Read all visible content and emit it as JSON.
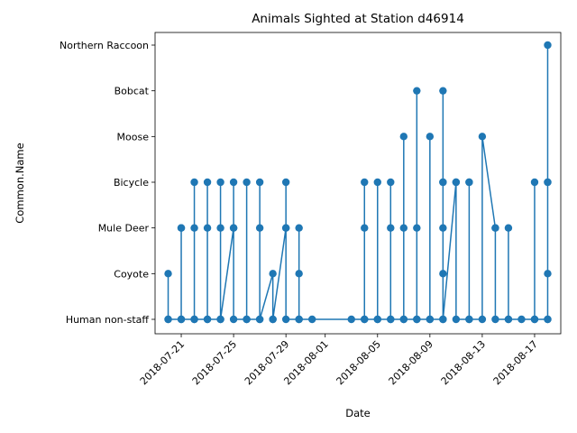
{
  "chart_data": {
    "type": "line",
    "title": "Animals Sighted at Station d46914",
    "xlabel": "Date",
    "ylabel": "Common.Name",
    "categories": [
      "Human non-staff",
      "Coyote",
      "Mule Deer",
      "Bicycle",
      "Moose",
      "Bobcat",
      "Northern Raccoon"
    ],
    "x_ticks": [
      "2018-07-21",
      "2018-07-25",
      "2018-07-29",
      "2018-08-01",
      "2018-08-05",
      "2018-08-09",
      "2018-08-13",
      "2018-08-17"
    ],
    "xlim": [
      "2018-07-19",
      "2018-08-19"
    ],
    "color": "#1f77b4",
    "grid": false,
    "series": [
      {
        "points": [
          [
            "2018-07-20",
            "Coyote"
          ],
          [
            "2018-07-20",
            "Human non-staff"
          ],
          [
            "2018-07-20",
            "Human non-staff"
          ],
          [
            "2018-07-21",
            "Human non-staff"
          ],
          [
            "2018-07-21",
            "Mule Deer"
          ],
          [
            "2018-07-21",
            "Mule Deer"
          ],
          [
            "2018-07-21",
            "Human non-staff"
          ],
          [
            "2018-07-22",
            "Human non-staff"
          ],
          [
            "2018-07-22",
            "Bicycle"
          ],
          [
            "2018-07-22",
            "Mule Deer"
          ],
          [
            "2018-07-22",
            "Human non-staff"
          ],
          [
            "2018-07-23",
            "Human non-staff"
          ],
          [
            "2018-07-23",
            "Bicycle"
          ],
          [
            "2018-07-23",
            "Mule Deer"
          ],
          [
            "2018-07-23",
            "Human non-staff"
          ],
          [
            "2018-07-24",
            "Human non-staff"
          ],
          [
            "2018-07-24",
            "Bicycle"
          ],
          [
            "2018-07-24",
            "Mule Deer"
          ],
          [
            "2018-07-24",
            "Human non-staff"
          ],
          [
            "2018-07-25",
            "Mule Deer"
          ],
          [
            "2018-07-25",
            "Bicycle"
          ],
          [
            "2018-07-25",
            "Mule Deer"
          ],
          [
            "2018-07-25",
            "Human non-staff"
          ],
          [
            "2018-07-26",
            "Human non-staff"
          ],
          [
            "2018-07-26",
            "Bicycle"
          ],
          [
            "2018-07-26",
            "Human non-staff"
          ],
          [
            "2018-07-27",
            "Human non-staff"
          ],
          [
            "2018-07-27",
            "Bicycle"
          ],
          [
            "2018-07-27",
            "Mule Deer"
          ],
          [
            "2018-07-27",
            "Human non-staff"
          ],
          [
            "2018-07-28",
            "Coyote"
          ],
          [
            "2018-07-28",
            "Human non-staff"
          ],
          [
            "2018-07-28",
            "Human non-staff"
          ],
          [
            "2018-07-29",
            "Mule Deer"
          ],
          [
            "2018-07-29",
            "Bicycle"
          ],
          [
            "2018-07-29",
            "Mule Deer"
          ],
          [
            "2018-07-29",
            "Human non-staff"
          ],
          [
            "2018-07-30",
            "Human non-staff"
          ],
          [
            "2018-07-30",
            "Mule Deer"
          ],
          [
            "2018-07-30",
            "Coyote"
          ],
          [
            "2018-07-30",
            "Human non-staff"
          ],
          [
            "2018-07-31",
            "Human non-staff"
          ],
          [
            "2018-08-03",
            "Human non-staff"
          ],
          [
            "2018-08-04",
            "Human non-staff"
          ],
          [
            "2018-08-04",
            "Bicycle"
          ],
          [
            "2018-08-04",
            "Mule Deer"
          ],
          [
            "2018-08-04",
            "Human non-staff"
          ],
          [
            "2018-08-05",
            "Human non-staff"
          ],
          [
            "2018-08-05",
            "Bicycle"
          ],
          [
            "2018-08-05",
            "Human non-staff"
          ],
          [
            "2018-08-06",
            "Human non-staff"
          ],
          [
            "2018-08-06",
            "Bicycle"
          ],
          [
            "2018-08-06",
            "Mule Deer"
          ],
          [
            "2018-08-06",
            "Human non-staff"
          ],
          [
            "2018-08-07",
            "Human non-staff"
          ],
          [
            "2018-08-07",
            "Moose"
          ],
          [
            "2018-08-07",
            "Mule Deer"
          ],
          [
            "2018-08-07",
            "Human non-staff"
          ],
          [
            "2018-08-08",
            "Human non-staff"
          ],
          [
            "2018-08-08",
            "Bobcat"
          ],
          [
            "2018-08-08",
            "Mule Deer"
          ],
          [
            "2018-08-08",
            "Human non-staff"
          ],
          [
            "2018-08-09",
            "Human non-staff"
          ],
          [
            "2018-08-09",
            "Moose"
          ],
          [
            "2018-08-09",
            "Human non-staff"
          ],
          [
            "2018-08-10",
            "Human non-staff"
          ],
          [
            "2018-08-10",
            "Bobcat"
          ],
          [
            "2018-08-10",
            "Bicycle"
          ],
          [
            "2018-08-10",
            "Mule Deer"
          ],
          [
            "2018-08-10",
            "Coyote"
          ],
          [
            "2018-08-10",
            "Bicycle"
          ],
          [
            "2018-08-10",
            "Human non-staff"
          ],
          [
            "2018-08-11",
            "Bicycle"
          ],
          [
            "2018-08-11",
            "Bicycle"
          ],
          [
            "2018-08-11",
            "Human non-staff"
          ],
          [
            "2018-08-12",
            "Human non-staff"
          ],
          [
            "2018-08-12",
            "Bicycle"
          ],
          [
            "2018-08-12",
            "Bicycle"
          ],
          [
            "2018-08-12",
            "Human non-staff"
          ],
          [
            "2018-08-13",
            "Human non-staff"
          ],
          [
            "2018-08-13",
            "Moose"
          ],
          [
            "2018-08-14",
            "Mule Deer"
          ],
          [
            "2018-08-14",
            "Mule Deer"
          ],
          [
            "2018-08-14",
            "Human non-staff"
          ],
          [
            "2018-08-15",
            "Human non-staff"
          ],
          [
            "2018-08-15",
            "Mule Deer"
          ],
          [
            "2018-08-15",
            "Human non-staff"
          ],
          [
            "2018-08-16",
            "Human non-staff"
          ],
          [
            "2018-08-17",
            "Human non-staff"
          ],
          [
            "2018-08-17",
            "Bicycle"
          ],
          [
            "2018-08-17",
            "Human non-staff"
          ],
          [
            "2018-08-18",
            "Human non-staff"
          ],
          [
            "2018-08-18",
            "Northern Raccoon"
          ],
          [
            "2018-08-18",
            "Bicycle"
          ],
          [
            "2018-08-18",
            "Coyote"
          ],
          [
            "2018-08-18",
            "Bicycle"
          ],
          [
            "2018-08-18",
            "Human non-staff"
          ]
        ]
      }
    ]
  }
}
